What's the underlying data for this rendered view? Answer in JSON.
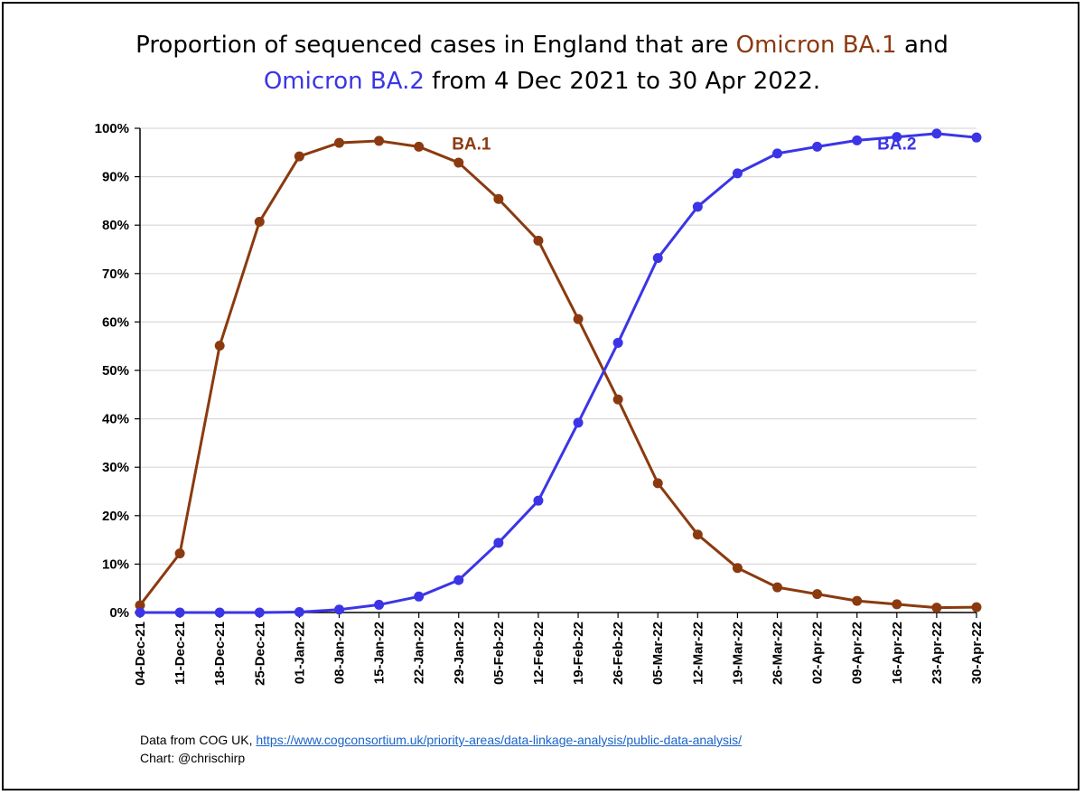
{
  "title": {
    "line1_prefix": "Proportion of sequenced cases in England that are ",
    "line1_ba1": "Omicron BA.1",
    "line1_suffix": " and",
    "line2_ba2": "Omicron BA.2",
    "line2_suffix": " from 4 Dec 2021 to 30 Apr 2022."
  },
  "colors": {
    "ba1": "#8B3A0F",
    "ba2": "#3B35E6",
    "grid": "#d9d9d9",
    "axis": "#000000"
  },
  "chart_data": {
    "type": "line",
    "title": "Proportion of sequenced cases in England that are Omicron BA.1 and Omicron BA.2 from 4 Dec 2021 to 30 Apr 2022.",
    "xlabel": "",
    "ylabel": "",
    "ylim": [
      0,
      100
    ],
    "y_ticks": [
      0,
      10,
      20,
      30,
      40,
      50,
      60,
      70,
      80,
      90,
      100
    ],
    "y_tick_labels": [
      "0%",
      "10%",
      "20%",
      "30%",
      "40%",
      "50%",
      "60%",
      "70%",
      "80%",
      "90%",
      "100%"
    ],
    "grid": true,
    "categories": [
      "04-Dec-21",
      "11-Dec-21",
      "18-Dec-21",
      "25-Dec-21",
      "01-Jan-22",
      "08-Jan-22",
      "15-Jan-22",
      "22-Jan-22",
      "29-Jan-22",
      "05-Feb-22",
      "12-Feb-22",
      "19-Feb-22",
      "26-Feb-22",
      "05-Mar-22",
      "12-Mar-22",
      "19-Mar-22",
      "26-Mar-22",
      "02-Apr-22",
      "09-Apr-22",
      "16-Apr-22",
      "23-Apr-22",
      "30-Apr-22"
    ],
    "series": [
      {
        "name": "BA.1",
        "color": "#8B3A0F",
        "label_anchor_index": 9,
        "values": [
          1.5,
          12.2,
          55.1,
          80.7,
          94.2,
          97.0,
          97.4,
          96.2,
          92.9,
          85.4,
          76.8,
          60.6,
          44.0,
          26.7,
          16.1,
          9.2,
          5.2,
          3.8,
          2.4,
          1.7,
          1.0,
          1.1
        ]
      },
      {
        "name": "BA.2",
        "color": "#3B35E6",
        "label_anchor_index": 19,
        "values": [
          0.0,
          0.0,
          0.0,
          0.0,
          0.1,
          0.6,
          1.6,
          3.3,
          6.7,
          14.4,
          23.1,
          39.2,
          55.7,
          73.2,
          83.8,
          90.7,
          94.8,
          96.2,
          97.5,
          98.2,
          98.9,
          98.1
        ]
      }
    ]
  },
  "footer": {
    "source_prefix": "Data from COG UK, ",
    "source_link": "https://www.cogconsortium.uk/priority-areas/data-linkage-analysis/public-data-analysis/",
    "credit": "Chart: @chrischirp"
  }
}
